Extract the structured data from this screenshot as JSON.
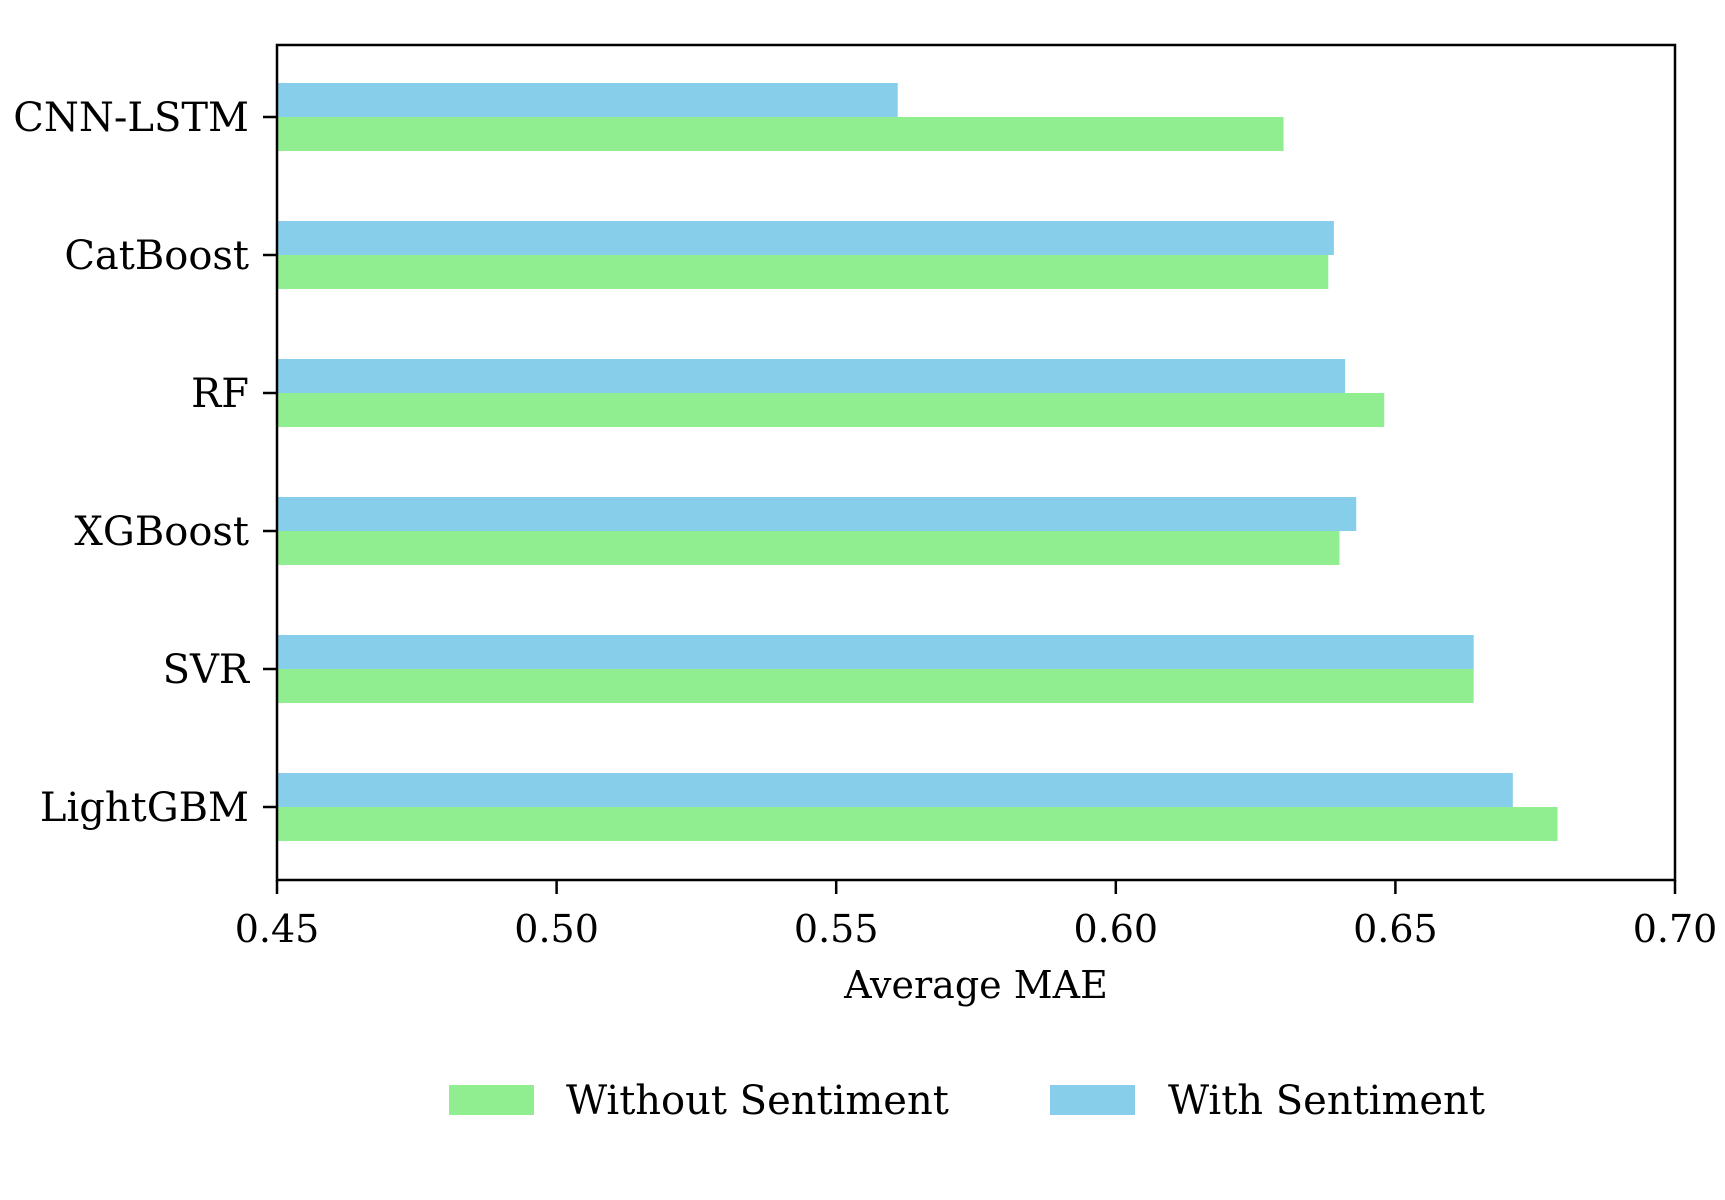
{
  "chart_data": {
    "type": "bar",
    "orientation": "horizontal",
    "categories": [
      "CNN-LSTM",
      "CatBoost",
      "RF",
      "XGBoost",
      "SVR",
      "LightGBM"
    ],
    "series": [
      {
        "name": "Without Sentiment",
        "color": "#90EE90",
        "values": [
          0.63,
          0.638,
          0.648,
          0.64,
          0.664,
          0.679
        ]
      },
      {
        "name": "With Sentiment",
        "color": "#87CEEB",
        "values": [
          0.561,
          0.639,
          0.641,
          0.643,
          0.664,
          0.671
        ]
      }
    ],
    "xlabel": "Average MAE",
    "ylabel": "",
    "title": "",
    "xlim": [
      0.45,
      0.7
    ],
    "xticks": [
      "0.45",
      "0.50",
      "0.55",
      "0.60",
      "0.65",
      "0.70"
    ],
    "grid": false,
    "legend_position": "bottom-center"
  }
}
